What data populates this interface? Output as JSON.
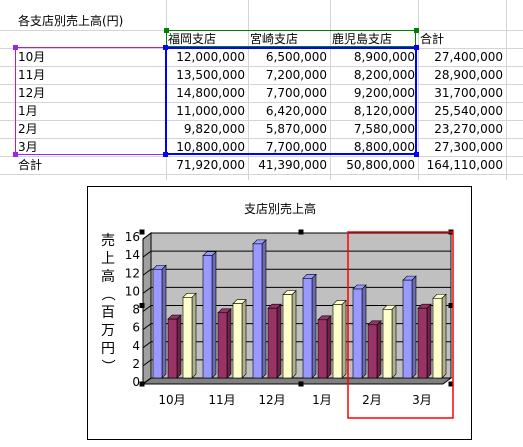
{
  "sheet_title": "各支店別売上高(円)",
  "table": {
    "headers": [
      "福岡支店",
      "宮崎支店",
      "鹿児島支店",
      "合計"
    ],
    "rows": [
      {
        "label": "10月",
        "values": [
          "12,000,000",
          "6,500,000",
          "8,900,000",
          "27,400,000"
        ]
      },
      {
        "label": "11月",
        "values": [
          "13,500,000",
          "7,200,000",
          "8,200,000",
          "28,900,000"
        ]
      },
      {
        "label": "12月",
        "values": [
          "14,800,000",
          "7,700,000",
          "9,200,000",
          "31,700,000"
        ]
      },
      {
        "label": "1月",
        "values": [
          "11,000,000",
          "6,420,000",
          "8,120,000",
          "25,540,000"
        ]
      },
      {
        "label": "2月",
        "values": [
          "9,820,000",
          "5,870,000",
          "7,580,000",
          "23,270,000"
        ]
      },
      {
        "label": "3月",
        "values": [
          "10,800,000",
          "7,700,000",
          "8,800,000",
          "27,300,000"
        ]
      }
    ],
    "total": {
      "label": "合計",
      "values": [
        "71,920,000",
        "41,390,000",
        "50,800,000",
        "164,110,000"
      ]
    }
  },
  "colors": {
    "fukuoka": "#9999ff",
    "miyazaki": "#993366",
    "kagoshima": "#ffffcc",
    "plot_bg": "#c0c0c0",
    "row_range": "#a020f0",
    "series_range": "#008000",
    "data_range": "#0000ff",
    "highlight": "#ff0000"
  },
  "chart_data": {
    "type": "bar",
    "title": "支店別売上高",
    "ylabel": "売上高（百万円）",
    "xlabel": "",
    "categories": [
      "10月",
      "11月",
      "12月",
      "1月",
      "2月",
      "3月"
    ],
    "series": [
      {
        "values": [
          12.0,
          13.5,
          14.8,
          11.0,
          9.82,
          10.8
        ]
      },
      {
        "values": [
          6.5,
          7.2,
          7.7,
          6.42,
          5.87,
          7.7
        ]
      },
      {
        "values": [
          8.9,
          8.2,
          9.2,
          8.12,
          7.58,
          8.8
        ]
      }
    ],
    "ylim": [
      0,
      16
    ],
    "yticks": [
      "0",
      "2",
      "4",
      "6",
      "8",
      "10",
      "12",
      "14",
      "16"
    ],
    "grid": true,
    "legend": "none",
    "highlight_categories": [
      "2月",
      "3月"
    ]
  }
}
